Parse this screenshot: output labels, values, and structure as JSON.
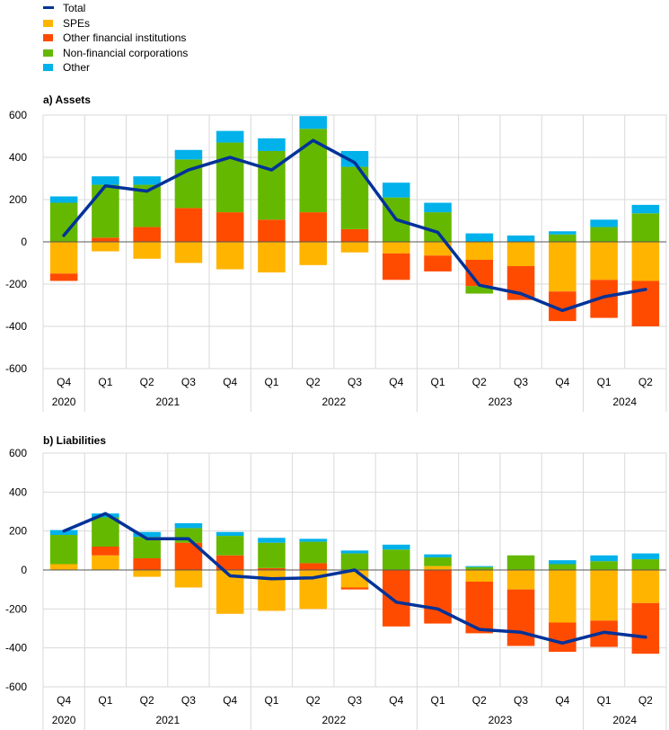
{
  "legend": [
    {
      "label": "Total",
      "kind": "line",
      "color": "#003299"
    },
    {
      "label": "SPEs",
      "kind": "box",
      "color": "#FFB400"
    },
    {
      "label": "Other financial institutions",
      "kind": "box",
      "color": "#FF4B00"
    },
    {
      "label": "Non-financial corporations",
      "kind": "box",
      "color": "#65B800"
    },
    {
      "label": "Other",
      "kind": "box",
      "color": "#00B1EA"
    }
  ],
  "chart_data": [
    {
      "type": "bar",
      "stacked": true,
      "title": "a) Assets",
      "xlabel": "",
      "ylabel": "",
      "categories": [
        "Q4",
        "Q1",
        "Q2",
        "Q3",
        "Q4",
        "Q1",
        "Q2",
        "Q3",
        "Q4",
        "Q1",
        "Q2",
        "Q3",
        "Q4",
        "Q1",
        "Q2"
      ],
      "year_groups": [
        {
          "label": "2020",
          "count": 1
        },
        {
          "label": "2021",
          "count": 4
        },
        {
          "label": "2022",
          "count": 4
        },
        {
          "label": "2023",
          "count": 4
        },
        {
          "label": "2024",
          "count": 2
        }
      ],
      "ylim": [
        -600,
        600
      ],
      "yticks": [
        -600,
        -400,
        -200,
        0,
        200,
        400,
        600
      ],
      "grid": true,
      "series": [
        {
          "name": "SPEs",
          "color": "#FFB400",
          "values": [
            -150,
            -45,
            -80,
            -100,
            -130,
            -145,
            -110,
            -50,
            -55,
            -65,
            -85,
            -115,
            -235,
            -180,
            -185
          ]
        },
        {
          "name": "Other financial institutions",
          "color": "#FF4B00",
          "values": [
            -35,
            20,
            70,
            160,
            140,
            105,
            140,
            60,
            -125,
            -75,
            -125,
            -160,
            -140,
            -180,
            -215
          ]
        },
        {
          "name": "Non-financial corporations",
          "color": "#65B800",
          "values": [
            185,
            250,
            200,
            230,
            330,
            325,
            395,
            295,
            210,
            140,
            -35,
            0,
            35,
            70,
            135
          ]
        },
        {
          "name": "Other",
          "color": "#00B1EA",
          "values": [
            30,
            40,
            40,
            45,
            55,
            60,
            60,
            75,
            70,
            45,
            40,
            30,
            15,
            35,
            40
          ]
        },
        {
          "name": "Total",
          "color": "#003299",
          "kind": "line",
          "values": [
            30,
            265,
            240,
            340,
            400,
            340,
            480,
            375,
            105,
            45,
            -205,
            -245,
            -325,
            -260,
            -225
          ]
        }
      ]
    },
    {
      "type": "bar",
      "stacked": true,
      "title": "b) Liabilities",
      "xlabel": "",
      "ylabel": "",
      "categories": [
        "Q4",
        "Q1",
        "Q2",
        "Q3",
        "Q4",
        "Q1",
        "Q2",
        "Q3",
        "Q4",
        "Q1",
        "Q2",
        "Q3",
        "Q4",
        "Q1",
        "Q2"
      ],
      "year_groups": [
        {
          "label": "2020",
          "count": 1
        },
        {
          "label": "2021",
          "count": 4
        },
        {
          "label": "2022",
          "count": 4
        },
        {
          "label": "2023",
          "count": 4
        },
        {
          "label": "2024",
          "count": 2
        }
      ],
      "ylim": [
        -600,
        600
      ],
      "yticks": [
        -600,
        -400,
        -200,
        0,
        200,
        400,
        600
      ],
      "grid": true,
      "series": [
        {
          "name": "SPEs",
          "color": "#FFB400",
          "values": [
            30,
            75,
            -35,
            -90,
            -225,
            -210,
            -200,
            -90,
            0,
            20,
            -60,
            -100,
            -270,
            -260,
            -170
          ]
        },
        {
          "name": "Other financial institutions",
          "color": "#FF4B00",
          "values": [
            0,
            45,
            60,
            140,
            75,
            10,
            35,
            -10,
            -290,
            -275,
            -265,
            -290,
            -150,
            -135,
            -260
          ]
        },
        {
          "name": "Non-financial corporations",
          "color": "#65B800",
          "values": [
            150,
            150,
            110,
            75,
            100,
            130,
            110,
            85,
            105,
            45,
            15,
            75,
            30,
            45,
            55
          ]
        },
        {
          "name": "Other",
          "color": "#00B1EA",
          "values": [
            25,
            20,
            25,
            25,
            20,
            25,
            15,
            15,
            25,
            15,
            5,
            0,
            20,
            30,
            30
          ]
        },
        {
          "name": "Total",
          "color": "#003299",
          "kind": "line",
          "values": [
            200,
            290,
            160,
            160,
            -30,
            -45,
            -40,
            0,
            -165,
            -200,
            -305,
            -320,
            -375,
            -320,
            -345
          ]
        }
      ]
    }
  ]
}
